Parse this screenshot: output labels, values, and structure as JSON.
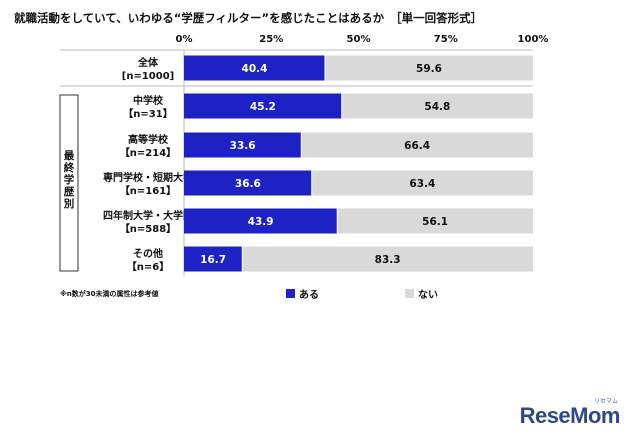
{
  "title": "就職活動をしていて、いわゆる“学歴フィルター”を感じたことはあるか",
  "subtitle": "［単一回答形式］",
  "note": "※n数が30未満の属性は参考値",
  "logo": "ReseMom",
  "logo_sub": "リセマム",
  "colors": {
    "aru": "#1e22c4",
    "nai": "#d9d9d9",
    "divider": "#ffffff"
  },
  "chart_data": {
    "type": "bar",
    "orientation": "horizontal",
    "stacked": true,
    "xlim": [
      0,
      100
    ],
    "xticks": [
      "0%",
      "25%",
      "50%",
      "75%",
      "100%"
    ],
    "group_label": "最終学歴別",
    "categories": [
      {
        "line1": "全体",
        "line2": "[n=1000]",
        "group": false
      },
      {
        "line1": "中学校",
        "line2": "【n=31】",
        "group": true
      },
      {
        "line1": "高等学校",
        "line2": "【n=214】",
        "group": true
      },
      {
        "line1": "専門学校・短期大学",
        "line2": "【n=161】",
        "group": true
      },
      {
        "line1": "四年制大学・大学院",
        "line2": "【n=588】",
        "group": true
      },
      {
        "line1": "その他",
        "line2": "【n=6】",
        "group": true
      }
    ],
    "series": [
      {
        "name": "ある",
        "values": [
          40.4,
          45.2,
          33.6,
          36.6,
          43.9,
          16.7
        ],
        "labels": [
          "40.4",
          "45.2",
          "33.6",
          "36.6",
          "43.9",
          "16.7"
        ]
      },
      {
        "name": "ない",
        "values": [
          59.6,
          54.8,
          66.4,
          63.4,
          56.1,
          83.3
        ],
        "labels": [
          "59.6",
          "54.8",
          "66.4",
          "63.4",
          "56.1",
          "83.3"
        ]
      }
    ],
    "legend_position": "bottom"
  }
}
